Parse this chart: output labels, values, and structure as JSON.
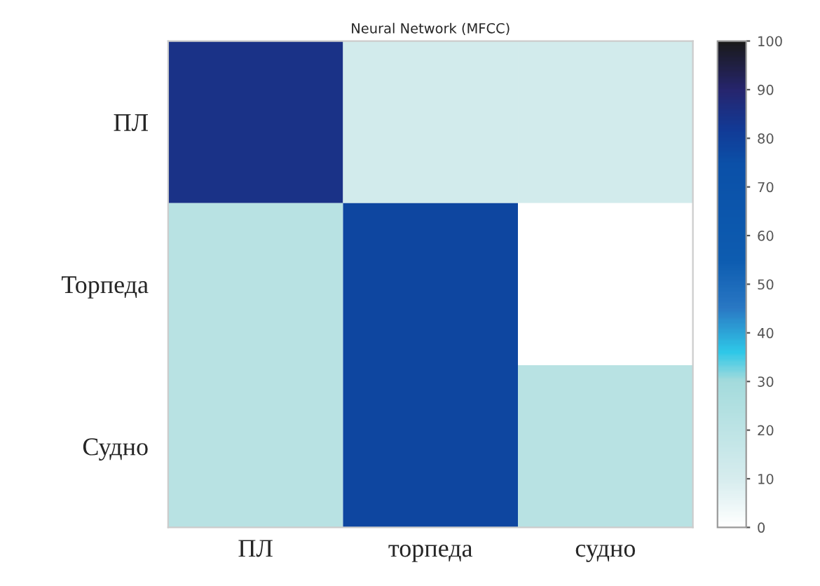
{
  "chart_data": {
    "type": "heatmap",
    "title": "Neural Network (MFCC)",
    "categories": [
      "ПЛ",
      "торпеда",
      "судно"
    ],
    "y_categories": [
      "ПЛ",
      "Торпеда",
      "Судно"
    ],
    "cells": [
      [
        85,
        12,
        12
      ],
      [
        22,
        78,
        0
      ],
      [
        22,
        78,
        22
      ]
    ],
    "clim": [
      0,
      100
    ],
    "cticks": [
      0,
      10,
      20,
      30,
      40,
      50,
      60,
      70,
      80,
      90,
      100
    ]
  }
}
